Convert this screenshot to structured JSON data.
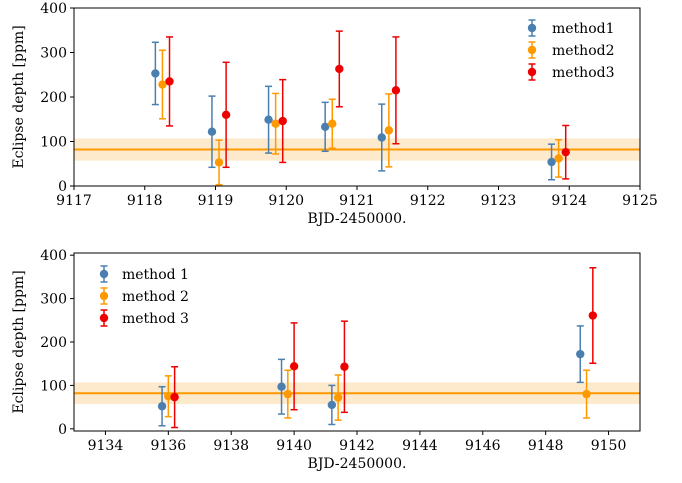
{
  "chart_data": [
    {
      "type": "scatter",
      "xlabel": "BJD-2450000.",
      "ylabel": "Eclipse depth [ppm]",
      "xlim": [
        9117,
        9125
      ],
      "ylim": [
        0,
        400
      ],
      "xticks": [
        9117,
        9118,
        9119,
        9120,
        9121,
        9122,
        9123,
        9124,
        9125
      ],
      "yticks": [
        0,
        100,
        200,
        300,
        400
      ],
      "legend_position": "top-right",
      "reference": {
        "value": 82,
        "band": [
          57,
          107
        ],
        "color": "#ff9900",
        "band_color": "#fde9cc"
      },
      "series": [
        {
          "name": "method1",
          "color": "#4a7fb0",
          "x": [
            9118.15,
            9118.95,
            9119.75,
            9120.55,
            9121.35,
            9123.75
          ],
          "y": [
            253,
            122,
            149,
            133,
            109,
            54
          ],
          "err": [
            70,
            80,
            75,
            55,
            75,
            40
          ]
        },
        {
          "name": "method2",
          "color": "#ff9900",
          "x": [
            9118.25,
            9119.05,
            9119.85,
            9120.65,
            9121.45,
            9123.85
          ],
          "y": [
            228,
            53,
            140,
            140,
            125,
            62
          ],
          "err": [
            77,
            50,
            68,
            55,
            82,
            42
          ]
        },
        {
          "name": "method3",
          "color": "#ee0000",
          "x": [
            9118.35,
            9119.15,
            9119.95,
            9120.75,
            9121.55,
            9123.95
          ],
          "y": [
            235,
            160,
            146,
            263,
            215,
            76
          ],
          "err": [
            100,
            118,
            93,
            85,
            120,
            60
          ]
        }
      ]
    },
    {
      "type": "scatter",
      "xlabel": "BJD-2450000.",
      "ylabel": "Eclipse depth [ppm]",
      "xlim": [
        9133,
        9151
      ],
      "ylim": [
        -5,
        405
      ],
      "xticks": [
        9134,
        9136,
        9138,
        9140,
        9142,
        9144,
        9146,
        9148,
        9150
      ],
      "yticks": [
        0,
        100,
        200,
        300,
        400
      ],
      "legend_position": "top-left",
      "reference": {
        "value": 82,
        "band": [
          57,
          107
        ],
        "color": "#ff9900",
        "band_color": "#fde9cc"
      },
      "series": [
        {
          "name": "method 1",
          "color": "#4a7fb0",
          "x": [
            9135.8,
            9139.6,
            9141.2,
            9149.1
          ],
          "y": [
            52,
            97,
            55,
            172
          ],
          "err": [
            45,
            63,
            45,
            65
          ]
        },
        {
          "name": "method 2",
          "color": "#ff9900",
          "x": [
            9136.0,
            9139.8,
            9141.4,
            9149.3
          ],
          "y": [
            75,
            80,
            72,
            80
          ],
          "err": [
            47,
            55,
            52,
            55
          ]
        },
        {
          "name": "method 3",
          "color": "#ee0000",
          "x": [
            9136.2,
            9140.0,
            9141.6,
            9149.5
          ],
          "y": [
            73,
            144,
            143,
            261
          ],
          "err": [
            70,
            100,
            105,
            110
          ]
        }
      ]
    }
  ]
}
